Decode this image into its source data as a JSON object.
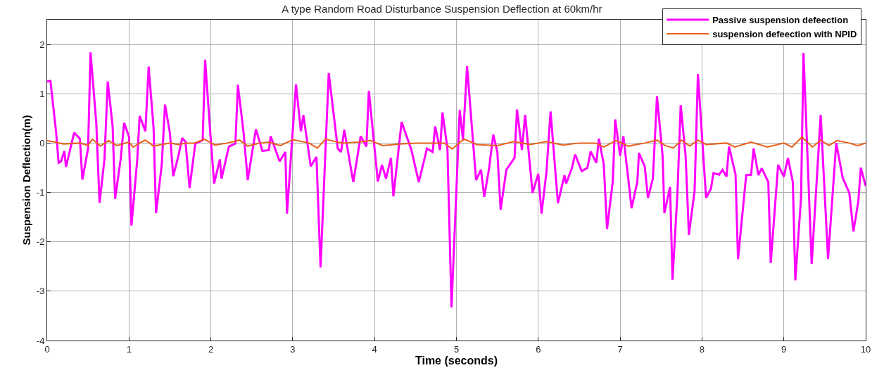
{
  "chart_data": {
    "type": "line",
    "title": "A type Random Road Disturbance Suspension Deflection at 60km/hr",
    "xlabel": "Time (seconds)",
    "ylabel": "Suspension Deflection(m)",
    "xlim": [
      0,
      10
    ],
    "xticks": [
      0,
      1,
      2,
      3,
      4,
      5,
      6,
      7,
      8,
      9,
      10
    ],
    "ylim": [
      -4,
      2.5
    ],
    "yticks": [
      -4,
      -3,
      -2,
      -1,
      0,
      1,
      2
    ],
    "grid": true,
    "legend": "top right",
    "line_style": "solid",
    "marker": "none",
    "series": [
      {
        "name": "Passive suspension defeection",
        "color": "#ff00ff",
        "x": [
          0,
          0.04,
          0.11,
          0.14,
          0.17,
          0.21,
          0.23,
          0.33,
          0.4,
          0.43,
          0.5,
          0.53,
          0.6,
          0.64,
          0.7,
          0.74,
          0.8,
          0.83,
          0.9,
          0.94,
          1.0,
          1.03,
          1.1,
          1.13,
          1.2,
          1.24,
          1.3,
          1.33,
          1.4,
          1.44,
          1.5,
          1.54,
          1.6,
          1.65,
          1.69,
          1.74,
          1.81,
          1.9,
          1.93,
          1.99,
          2.04,
          2.11,
          2.13,
          2.22,
          2.3,
          2.33,
          2.4,
          2.45,
          2.55,
          2.63,
          2.71,
          2.73,
          2.84,
          2.91,
          2.93,
          3.04,
          3.1,
          3.13,
          3.22,
          3.29,
          3.34,
          3.44,
          3.55,
          3.59,
          3.63,
          3.74,
          3.83,
          3.9,
          3.93,
          4.04,
          4.09,
          4.14,
          4.2,
          4.23,
          4.33,
          4.45,
          4.54,
          4.64,
          4.71,
          4.74,
          4.8,
          4.83,
          4.89,
          4.94,
          5.04,
          5.08,
          5.13,
          5.24,
          5.3,
          5.34,
          5.4,
          5.45,
          5.5,
          5.54,
          5.61,
          5.71,
          5.74,
          5.8,
          5.84,
          5.93,
          6.0,
          6.04,
          6.1,
          6.15,
          6.24,
          6.32,
          6.34,
          6.41,
          6.45,
          6.53,
          6.6,
          6.64,
          6.71,
          6.74,
          6.8,
          6.84,
          6.91,
          6.94,
          7.0,
          7.04,
          7.14,
          7.21,
          7.23,
          7.3,
          7.34,
          7.4,
          7.45,
          7.52,
          7.54,
          7.61,
          7.64,
          7.7,
          7.74,
          7.8,
          7.84,
          7.91,
          7.95,
          8.05,
          8.11,
          8.14,
          8.21,
          8.25,
          8.3,
          8.33,
          8.41,
          8.44,
          8.54,
          8.6,
          8.63,
          8.69,
          8.73,
          8.81,
          8.84,
          8.93,
          9.0,
          9.05,
          9.11,
          9.14,
          9.21,
          9.24,
          9.34,
          9.45,
          9.54,
          9.64,
          9.72,
          9.8,
          9.85,
          9.91,
          9.94,
          10.0
        ],
        "values": [
          1.25,
          1.26,
          0.21,
          -0.4,
          -0.37,
          -0.16,
          -0.48,
          0.21,
          0.09,
          -0.74,
          -0.11,
          1.84,
          0.41,
          -1.21,
          -0.33,
          1.25,
          0.34,
          -1.13,
          -0.3,
          0.41,
          0.13,
          -1.67,
          -0.35,
          0.55,
          0.24,
          1.55,
          0.31,
          -1.42,
          -0.44,
          0.78,
          0.2,
          -0.67,
          -0.28,
          0.1,
          0.03,
          -0.91,
          -0.01,
          0.06,
          1.69,
          0.27,
          -0.82,
          -0.33,
          -0.72,
          -0.07,
          -0.01,
          1.18,
          0.21,
          -0.75,
          0.28,
          -0.16,
          -0.14,
          0.14,
          -0.37,
          -0.18,
          -1.43,
          1.19,
          0.24,
          0.57,
          -0.47,
          -0.28,
          -2.52,
          1.42,
          -0.11,
          -0.18,
          0.27,
          -0.79,
          0.14,
          -0.07,
          1.06,
          -0.78,
          -0.44,
          -0.72,
          -0.3,
          -1.08,
          0.43,
          -0.14,
          -0.79,
          -0.11,
          -0.18,
          0.34,
          -0.14,
          0.62,
          -0.11,
          -3.33,
          0.67,
          0.07,
          1.56,
          -0.75,
          -0.54,
          -1.09,
          -0.5,
          0.17,
          -0.18,
          -1.35,
          -0.54,
          -0.3,
          0.68,
          -0.14,
          0.57,
          -1.01,
          -0.62,
          -1.43,
          -0.58,
          0.64,
          -1.22,
          -0.65,
          -0.82,
          -0.51,
          -0.23,
          -0.57,
          -0.5,
          -0.17,
          -0.4,
          0.09,
          -0.43,
          -1.74,
          -0.78,
          0.48,
          -0.26,
          0.14,
          -1.32,
          -0.78,
          -0.2,
          -0.47,
          -1.11,
          -0.72,
          0.95,
          -0.28,
          -1.42,
          -0.89,
          -2.77,
          -1.01,
          0.77,
          -0.26,
          -1.86,
          -0.96,
          1.4,
          -1.11,
          -0.92,
          -0.61,
          -0.64,
          -0.54,
          -0.68,
          -0.07,
          -0.64,
          -2.35,
          -0.65,
          -0.64,
          -0.11,
          -0.65,
          -0.51,
          -0.79,
          -2.43,
          -0.44,
          -0.68,
          -0.3,
          -0.79,
          -2.78,
          -1.11,
          1.83,
          -2.45,
          0.57,
          -2.35,
          0.0,
          -0.71,
          -1.01,
          -1.79,
          -1.18,
          -0.5,
          -0.87
        ]
      },
      {
        "name": "suspension defeection with NPID",
        "color": "#e8601c",
        "x": [
          0,
          0.1,
          0.2,
          0.4,
          0.5,
          0.55,
          0.65,
          0.75,
          0.85,
          1.0,
          1.05,
          1.15,
          1.2,
          1.3,
          1.4,
          1.5,
          1.6,
          1.7,
          1.8,
          1.92,
          2.05,
          2.2,
          2.35,
          2.45,
          2.6,
          2.7,
          2.85,
          3.0,
          3.2,
          3.3,
          3.4,
          3.6,
          3.8,
          3.95,
          4.1,
          4.3,
          4.5,
          4.7,
          4.85,
          4.95,
          5.05,
          5.1,
          5.25,
          5.5,
          5.7,
          5.9,
          6.1,
          6.3,
          6.5,
          6.7,
          6.8,
          6.95,
          7.1,
          7.3,
          7.45,
          7.55,
          7.65,
          7.75,
          7.85,
          7.95,
          8.05,
          8.3,
          8.4,
          8.6,
          8.8,
          9.0,
          9.1,
          9.22,
          9.35,
          9.45,
          9.55,
          9.65,
          9.8,
          9.9,
          10.0
        ],
        "values": [
          0.05,
          0.02,
          -0.02,
          0.0,
          -0.05,
          0.08,
          -0.06,
          0.05,
          -0.05,
          0.02,
          -0.08,
          0.02,
          0.06,
          -0.06,
          -0.03,
          0.0,
          -0.03,
          0.0,
          0.0,
          0.08,
          -0.04,
          0.0,
          0.06,
          -0.06,
          0.0,
          0.02,
          -0.05,
          0.07,
          0.0,
          -0.1,
          0.08,
          0.0,
          0.02,
          0.05,
          -0.05,
          -0.02,
          0.0,
          0.0,
          0.0,
          -0.12,
          0.03,
          0.08,
          -0.03,
          -0.05,
          0.03,
          -0.03,
          0.03,
          -0.04,
          0.0,
          0.0,
          -0.08,
          0.05,
          -0.06,
          0.0,
          0.06,
          -0.05,
          -0.1,
          0.06,
          -0.06,
          0.06,
          -0.03,
          0.0,
          -0.08,
          0.02,
          -0.08,
          0.0,
          -0.08,
          0.12,
          -0.08,
          0.06,
          -0.05,
          0.05,
          0.0,
          -0.05,
          0.0
        ]
      }
    ]
  }
}
